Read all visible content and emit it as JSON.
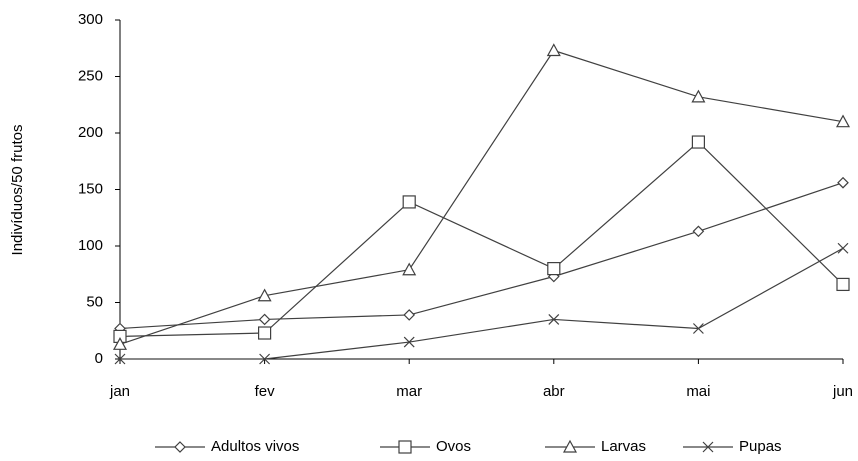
{
  "chart_data": {
    "type": "line",
    "y_label": "Indivíduos/50 frutos",
    "categories": [
      "jan",
      "fev",
      "mar",
      "abr",
      "mai",
      "jun"
    ],
    "series": [
      {
        "name": "Adultos vivos",
        "color": "#404040",
        "marker": "diamond",
        "values": [
          27,
          35,
          39,
          73,
          113,
          156
        ]
      },
      {
        "name": "Ovos",
        "color": "#404040",
        "marker": "square",
        "values": [
          20,
          23,
          139,
          80,
          192,
          66
        ]
      },
      {
        "name": "Larvas",
        "color": "#404040",
        "marker": "triangle",
        "values": [
          13,
          56,
          79,
          273,
          232,
          210
        ]
      },
      {
        "name": "Pupas",
        "color": "#404040",
        "marker": "x",
        "values": [
          0,
          0,
          15,
          35,
          27,
          98
        ]
      }
    ],
    "ylim": [
      0,
      300
    ],
    "yticks": [
      0,
      50,
      100,
      150,
      200,
      250,
      300
    ],
    "grid": false,
    "legend": "bottom"
  }
}
